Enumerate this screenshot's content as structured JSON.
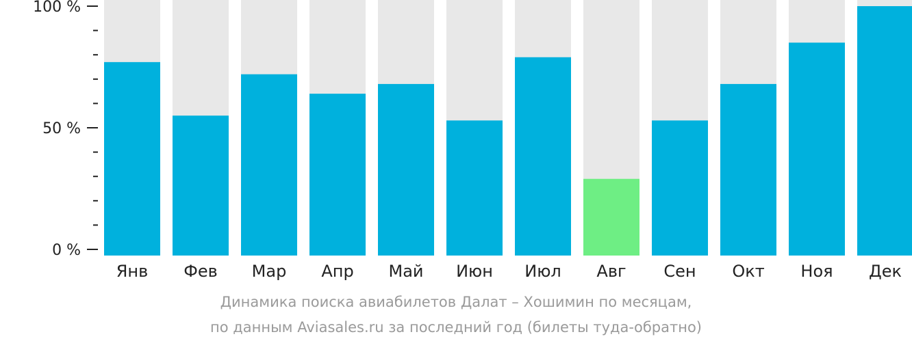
{
  "chart_data": {
    "type": "bar",
    "categories": [
      "Янв",
      "Фев",
      "Мар",
      "Апр",
      "Май",
      "Июн",
      "Июл",
      "Авг",
      "Сен",
      "Окт",
      "Ноя",
      "Дек"
    ],
    "values": [
      77,
      55,
      72,
      64,
      68,
      53,
      79,
      29,
      53,
      68,
      85,
      100
    ],
    "y_tick_labels": [
      "100 %",
      "50 %",
      "0 %"
    ],
    "y_tick_values": [
      100,
      50,
      0
    ],
    "ylim": [
      0,
      100
    ],
    "highlight_category": "Авг",
    "title": ""
  },
  "colors": {
    "bar": "#00b1dd",
    "highlight": "#6eee84",
    "track": "#e8e8e8",
    "axis": "#222222",
    "caption": "#9a9a9a"
  },
  "caption": {
    "line1": "Динамика поиска авиабилетов Далат – Хошимин по месяцам,",
    "line2": "по данным Aviasales.ru за последний год (билеты туда-обратно)"
  }
}
